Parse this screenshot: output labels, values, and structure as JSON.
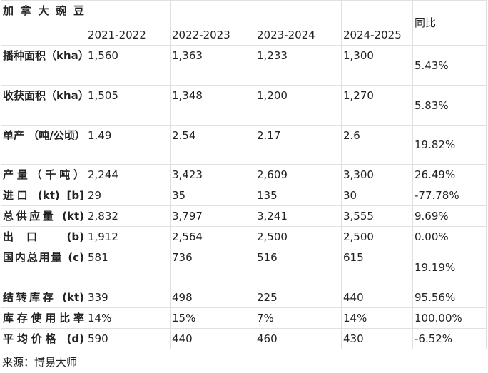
{
  "table": {
    "header": {
      "corner": "加拿大豌豆",
      "years": [
        "2021-2022",
        "2022-2023",
        "2023-2024",
        "2024-2025"
      ],
      "yoy": "同比"
    },
    "rows": [
      {
        "label": "播种面积（kha）",
        "values": [
          "1,560",
          "1,363",
          "1,233",
          "1,300"
        ],
        "yoy": "5.43%"
      },
      {
        "label": "收获面积（kha）",
        "values": [
          "1,505",
          "1,348",
          "1,200",
          "1,270"
        ],
        "yoy": "5.83%"
      },
      {
        "label": "单产 （吨/公顷）",
        "values": [
          "1.49",
          "2.54",
          "2.17",
          "2.6"
        ],
        "yoy": "19.82%"
      },
      {
        "label": "产量（千吨）",
        "values": [
          "2,244",
          "3,423",
          "2,609",
          "3,300"
        ],
        "yoy": "26.49%"
      },
      {
        "label": "进口 (kt) [b]",
        "values": [
          "29",
          "35",
          "135",
          "30"
        ],
        "yoy": "-77.78%"
      },
      {
        "label": "总供应量 (kt)",
        "values": [
          "2,832",
          "3,797",
          "3,241",
          "3,555"
        ],
        "yoy": "9.69%"
      },
      {
        "label": "出口 (b)",
        "values": [
          "1,912",
          "2,564",
          "2,500",
          "2,500"
        ],
        "yoy": "0.00%"
      },
      {
        "label": "国内总用量 (c)",
        "values": [
          "581",
          "736",
          "516",
          "615"
        ],
        "yoy": "19.19%"
      },
      {
        "label": "结转库存 (kt)",
        "values": [
          "339",
          "498",
          "225",
          "440"
        ],
        "yoy": "95.56%"
      },
      {
        "label": "库存使用比率",
        "values": [
          "14%",
          "15%",
          "7%",
          "14%"
        ],
        "yoy": "100.00%"
      },
      {
        "label": "平均价格 (d)",
        "values": [
          "590",
          "440",
          "460",
          "430"
        ],
        "yoy": "-6.52%"
      }
    ]
  },
  "source": "来源：博易大师"
}
